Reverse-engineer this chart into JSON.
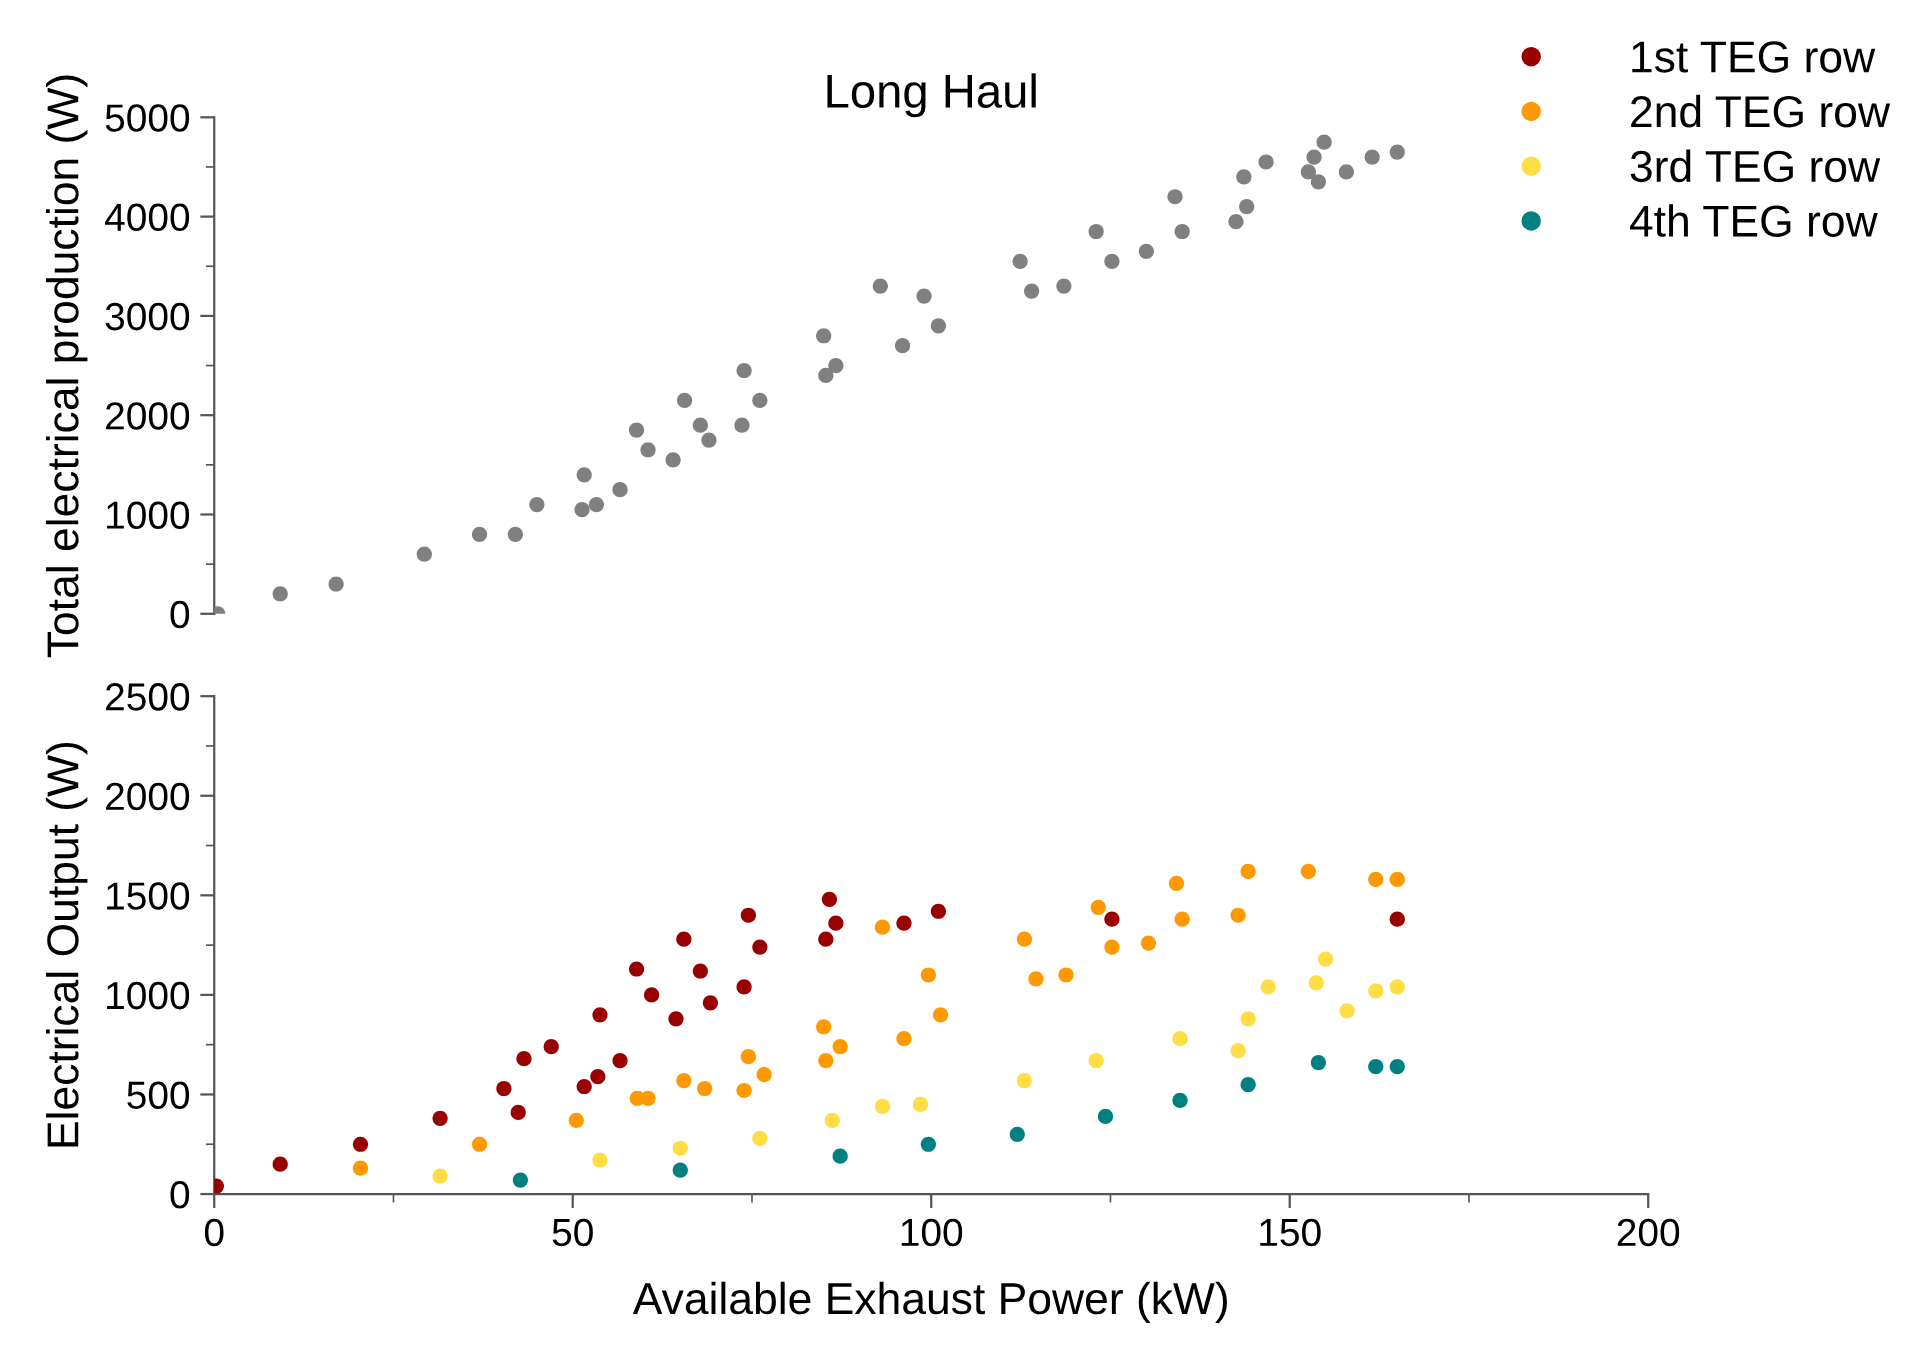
{
  "chart_data": [
    {
      "type": "scatter",
      "title": "Long Haul",
      "ylabel": "Total electrical production (W)",
      "xlim": [
        0,
        200
      ],
      "ylim": [
        0,
        5000
      ],
      "yticks": [
        0,
        1000,
        2000,
        3000,
        4000,
        5000
      ],
      "tick_labels": "y",
      "grid": false,
      "marker": "circle",
      "series": [
        {
          "color": "#808080",
          "x": [
            0.5,
            9.2,
            17,
            29.3,
            37,
            42,
            45,
            51.3,
            51.6,
            53.3,
            56.6,
            58.9,
            60.5,
            64,
            67.8,
            65.6,
            69,
            73.6,
            73.9,
            76.1,
            85.3,
            85,
            86.7,
            92.9,
            96,
            101,
            99,
            114,
            118.5,
            112.4,
            125.2,
            130,
            123,
            135,
            134,
            142.5,
            144,
            143.6,
            146.7,
            152.6,
            154,
            153.4,
            154.8,
            157.9,
            161.5,
            165
          ],
          "values": [
            0,
            200,
            300,
            600,
            800,
            800,
            1100,
            1050,
            1400,
            1100,
            1250,
            1850,
            1650,
            1550,
            1900,
            2150,
            1750,
            1900,
            2450,
            2150,
            2400,
            2800,
            2500,
            3300,
            2700,
            2900,
            3200,
            3250,
            3300,
            3550,
            3550,
            3650,
            3850,
            3850,
            4200,
            3950,
            4100,
            4400,
            4550,
            4450,
            4350,
            4600,
            4750,
            4450,
            4600,
            4650
          ]
        }
      ]
    },
    {
      "type": "scatter",
      "xlabel": "Available Exhaust Power (kW)",
      "ylabel": "Electrical Output (W)",
      "xlim": [
        0,
        200
      ],
      "ylim": [
        0,
        2500
      ],
      "xticks": [
        0,
        50,
        100,
        150,
        200
      ],
      "yticks": [
        0,
        500,
        1000,
        1500,
        2000,
        2500
      ],
      "grid": false,
      "marker": "circle",
      "legend": "top right",
      "series": [
        {
          "name": "1st TEG row",
          "color": "#990000",
          "x": [
            0.3,
            9.2,
            20.4,
            31.5,
            40.4,
            42.4,
            43.2,
            47,
            51.6,
            53.5,
            53.8,
            56.6,
            58.9,
            61,
            64.4,
            67.8,
            65.5,
            69.2,
            73.9,
            74.5,
            76.1,
            85.3,
            85.8,
            86.7,
            96.2,
            101,
            125.2,
            165
          ],
          "values": [
            40,
            150,
            250,
            380,
            530,
            410,
            680,
            740,
            540,
            590,
            900,
            670,
            1130,
            1000,
            880,
            1120,
            1280,
            960,
            1040,
            1400,
            1240,
            1280,
            1480,
            1360,
            1360,
            1420,
            1380,
            1380
          ]
        },
        {
          "name": "2nd TEG row",
          "color": "#ff9900",
          "x": [
            20.4,
            37,
            50.5,
            59,
            60.5,
            65.5,
            68.4,
            73.9,
            74.5,
            76.7,
            85,
            85.3,
            87.3,
            93.2,
            96.2,
            99.6,
            101.3,
            113,
            114.6,
            118.8,
            123.3,
            125.2,
            130.3,
            134.2,
            135,
            142.8,
            144.2,
            152.6,
            162,
            165
          ],
          "values": [
            130,
            250,
            370,
            480,
            480,
            570,
            530,
            520,
            690,
            600,
            840,
            670,
            740,
            1340,
            780,
            1100,
            900,
            1280,
            1080,
            1100,
            1440,
            1240,
            1260,
            1560,
            1380,
            1400,
            1620,
            1620,
            1580,
            1580
          ]
        },
        {
          "name": "3rd TEG row",
          "color": "#ffdd44",
          "x": [
            31.5,
            53.8,
            65,
            76.1,
            86.2,
            93.2,
            98.5,
            113,
            123,
            134.7,
            142.8,
            144.2,
            147,
            153.7,
            155,
            158,
            162,
            165
          ],
          "values": [
            90,
            170,
            230,
            280,
            370,
            440,
            450,
            570,
            670,
            780,
            720,
            880,
            1040,
            1060,
            1180,
            920,
            1020,
            1040
          ]
        },
        {
          "name": "4th TEG row",
          "color": "#008080",
          "x": [
            42.7,
            65,
            87.3,
            99.6,
            112,
            124.3,
            134.7,
            144.2,
            154,
            162,
            165
          ],
          "values": [
            70,
            120,
            190,
            250,
            300,
            390,
            470,
            550,
            660,
            640,
            640
          ]
        }
      ]
    }
  ]
}
